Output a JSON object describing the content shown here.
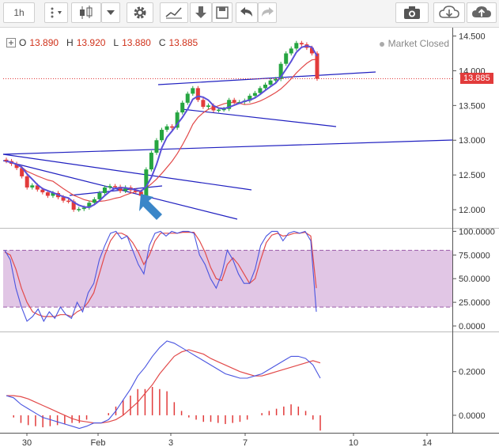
{
  "toolbar": {
    "interval": "1h",
    "buttons": [
      "interval-selector",
      "more-menu",
      "chart-style",
      "chart-style-dropdown",
      "indicators",
      "compare",
      "save",
      "undo",
      "redo",
      "screenshot",
      "load-layout",
      "publish"
    ]
  },
  "legend": {
    "open_label": "O",
    "open": "13.890",
    "high_label": "H",
    "high": "13.920",
    "low_label": "L",
    "low": "13.880",
    "close_label": "C",
    "close": "13.885"
  },
  "market_status": "Market Closed",
  "last_price": "13.885",
  "price_axis": [
    "14.500",
    "14.000",
    "13.500",
    "13.000",
    "12.500",
    "12.000"
  ],
  "stoch_axis": [
    "100.0000",
    "75.0000",
    "50.0000",
    "25.0000",
    "0.0000"
  ],
  "macd_axis": [
    "0.2000",
    "0.0000"
  ],
  "time_axis": [
    "30",
    "Feb",
    "3",
    "7",
    "10",
    "14"
  ],
  "colors": {
    "up": "#26a541",
    "down": "#e23b3b",
    "trend": "#2020c0",
    "ma": "#e24a4a",
    "arrow": "#3a86c8",
    "band": "#d7b3dc"
  },
  "chart_data": {
    "type": "line",
    "price_panel": {
      "ylim": [
        11.75,
        14.62
      ],
      "last": 13.885,
      "close": [
        12.7,
        12.66,
        12.6,
        12.48,
        12.32,
        12.35,
        12.29,
        12.25,
        12.2,
        12.24,
        12.18,
        12.13,
        12.12,
        12.0,
        12.01,
        12.03,
        12.1,
        12.15,
        12.24,
        12.32,
        12.34,
        12.33,
        12.27,
        12.32,
        12.28,
        12.26,
        12.2,
        12.58,
        12.82,
        13.0,
        13.15,
        13.2,
        13.18,
        13.4,
        13.54,
        13.67,
        13.75,
        13.58,
        13.48,
        13.5,
        13.43,
        13.44,
        13.45,
        13.58,
        13.55,
        13.55,
        13.57,
        13.64,
        13.68,
        13.75,
        13.8,
        13.86,
        13.88,
        14.1,
        14.25,
        14.32,
        14.4,
        14.38,
        14.33,
        14.25,
        13.885
      ]
    },
    "stochastic_panel": {
      "ylim": [
        -5,
        102
      ],
      "band": [
        20,
        80
      ],
      "k": [
        80,
        70,
        40,
        20,
        5,
        10,
        18,
        5,
        15,
        8,
        20,
        12,
        8,
        25,
        15,
        35,
        45,
        70,
        85,
        98,
        100,
        92,
        95,
        80,
        65,
        55,
        85,
        98,
        100,
        95,
        100,
        98,
        100,
        100,
        98,
        75,
        65,
        50,
        40,
        55,
        80,
        70,
        55,
        45,
        45,
        60,
        85,
        95,
        100,
        100,
        90,
        98,
        100,
        98,
        100,
        90,
        15
      ],
      "d": [
        78,
        75,
        60,
        40,
        25,
        15,
        12,
        10,
        10,
        10,
        12,
        12,
        10,
        15,
        18,
        25,
        35,
        55,
        75,
        90,
        98,
        98,
        95,
        88,
        78,
        65,
        75,
        90,
        98,
        98,
        98,
        98,
        99,
        99,
        99,
        90,
        78,
        62,
        50,
        48,
        65,
        72,
        65,
        55,
        45,
        50,
        70,
        88,
        96,
        98,
        95,
        96,
        98,
        98,
        99,
        95,
        40
      ]
    },
    "macd_panel": {
      "ylim": [
        -0.08,
        0.38
      ],
      "macd": [
        0.09,
        0.08,
        0.05,
        0.03,
        0.01,
        -0.01,
        -0.02,
        -0.03,
        -0.04,
        -0.05,
        -0.06,
        -0.05,
        -0.035,
        -0.035,
        -0.02,
        0.02,
        0.07,
        0.12,
        0.18,
        0.22,
        0.27,
        0.31,
        0.34,
        0.33,
        0.31,
        0.29,
        0.27,
        0.25,
        0.23,
        0.21,
        0.19,
        0.18,
        0.17,
        0.17,
        0.18,
        0.19,
        0.21,
        0.23,
        0.25,
        0.27,
        0.27,
        0.26,
        0.23,
        0.17
      ],
      "signal": [
        0.09,
        0.09,
        0.085,
        0.075,
        0.06,
        0.045,
        0.03,
        0.015,
        0.0,
        -0.015,
        -0.025,
        -0.03,
        -0.035,
        -0.035,
        -0.03,
        -0.02,
        0.0,
        0.03,
        0.06,
        0.1,
        0.14,
        0.19,
        0.23,
        0.27,
        0.29,
        0.3,
        0.29,
        0.28,
        0.26,
        0.245,
        0.23,
        0.215,
        0.2,
        0.19,
        0.18,
        0.18,
        0.19,
        0.2,
        0.21,
        0.22,
        0.23,
        0.24,
        0.25,
        0.24
      ],
      "histogram": [
        0.0,
        -0.01,
        -0.035,
        -0.045,
        -0.05,
        -0.055,
        -0.05,
        -0.045,
        -0.04,
        -0.035,
        -0.035,
        -0.02,
        0.0,
        0.0,
        0.01,
        0.04,
        0.07,
        0.09,
        0.12,
        0.12,
        0.13,
        0.12,
        0.11,
        0.06,
        0.02,
        -0.01,
        -0.02,
        -0.03,
        -0.03,
        -0.035,
        -0.04,
        -0.035,
        -0.03,
        -0.02,
        0.0,
        0.01,
        0.02,
        0.03,
        0.04,
        0.05,
        0.04,
        0.02,
        -0.02,
        -0.07
      ]
    }
  }
}
